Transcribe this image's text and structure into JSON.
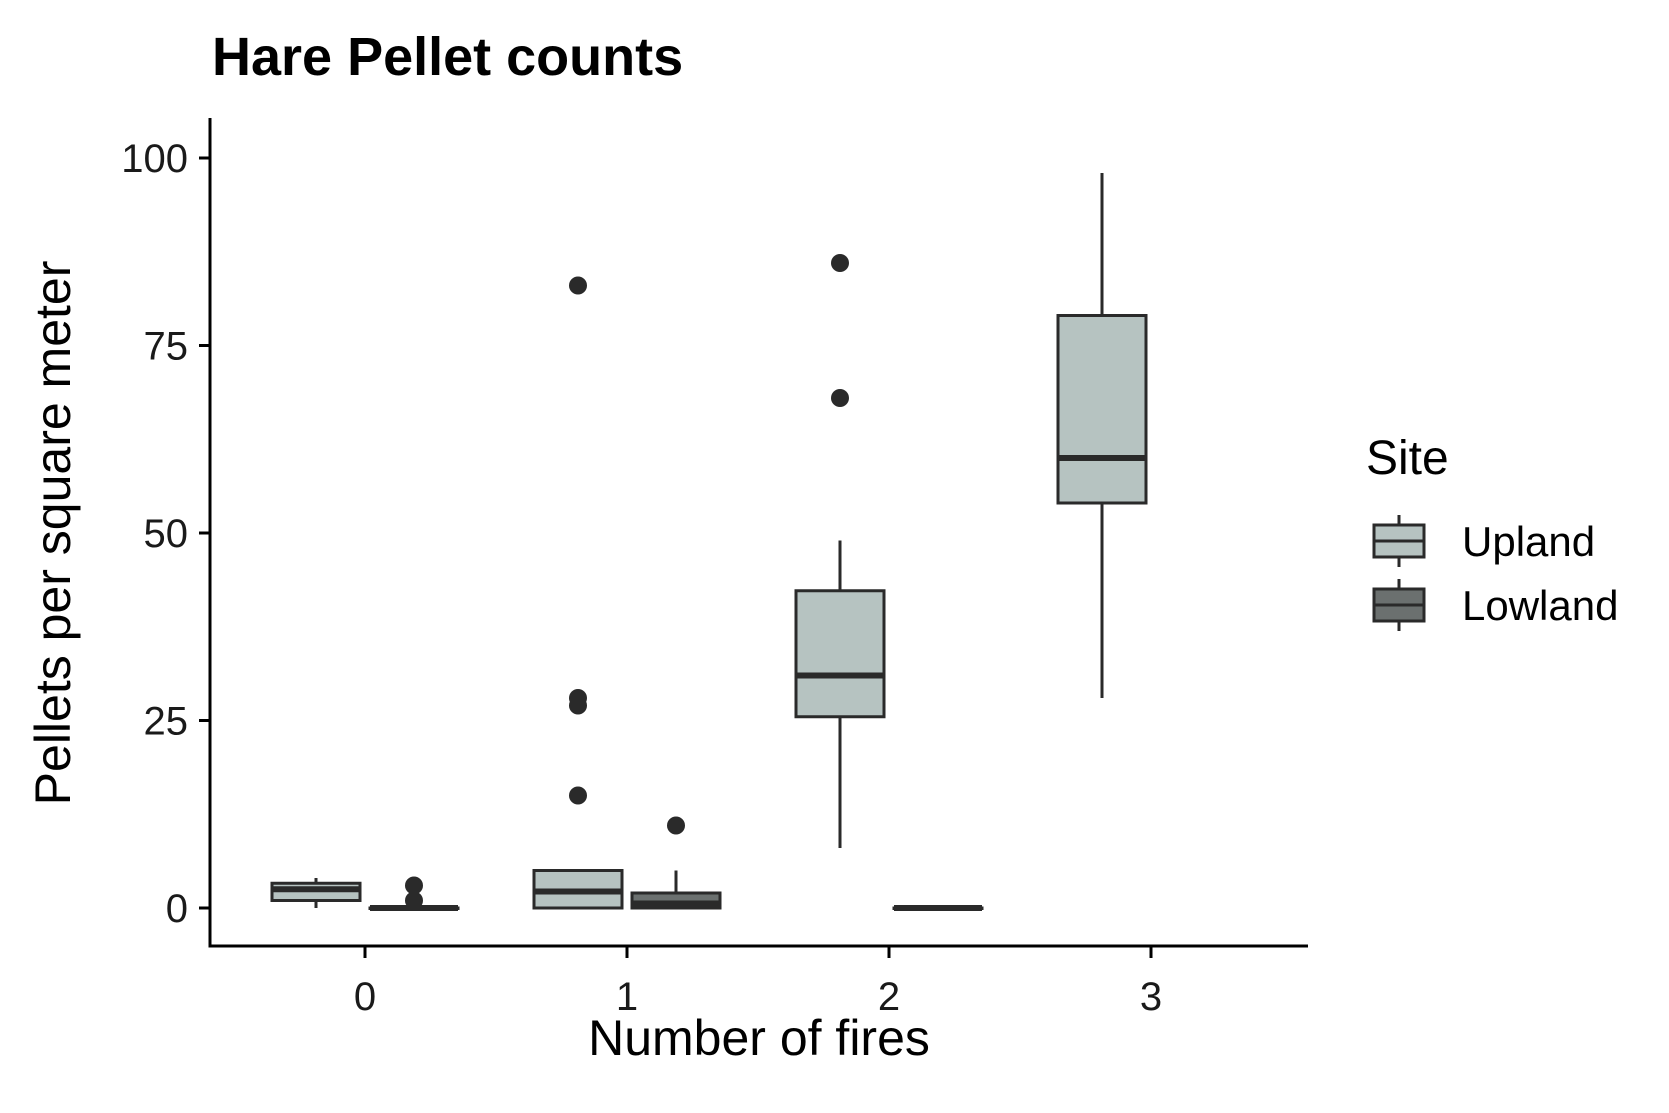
{
  "chart_data": {
    "type": "boxplot",
    "title": "Hare Pellet counts",
    "xlabel": "Number of fires",
    "ylabel": "Pellets per square meter",
    "categories": [
      "0",
      "1",
      "2",
      "3"
    ],
    "yticks": [
      "0",
      "25",
      "50",
      "75",
      "100"
    ],
    "ylim": [
      -5,
      105
    ],
    "grid": false,
    "legend": {
      "title": "Site",
      "position": "right",
      "entries": [
        "Upland",
        "Lowland"
      ]
    },
    "series": [
      {
        "name": "Upland",
        "color": "#b6c3c1",
        "boxes": [
          {
            "category": "0",
            "whisker_low": 0,
            "q1": 1,
            "median": 2.5,
            "q3": 3.3,
            "whisker_high": 4,
            "outliers": []
          },
          {
            "category": "1",
            "whisker_low": 0,
            "q1": 0,
            "median": 2.2,
            "q3": 5,
            "whisker_high": 5,
            "outliers": [
              15,
              27,
              28,
              83
            ]
          },
          {
            "category": "2",
            "whisker_low": 8,
            "q1": 25.5,
            "median": 31,
            "q3": 42.3,
            "whisker_high": 49,
            "outliers": [
              68,
              86
            ]
          },
          {
            "category": "3",
            "whisker_low": 28,
            "q1": 54,
            "median": 60,
            "q3": 79,
            "whisker_high": 98,
            "outliers": []
          }
        ]
      },
      {
        "name": "Lowland",
        "color": "#6b706f",
        "boxes": [
          {
            "category": "0",
            "whisker_low": 0,
            "q1": 0,
            "median": 0,
            "q3": 0,
            "whisker_high": 0,
            "outliers": [
              1,
              3
            ]
          },
          {
            "category": "1",
            "whisker_low": 0,
            "q1": 0,
            "median": 0.6,
            "q3": 2,
            "whisker_high": 5,
            "outliers": [
              11
            ]
          },
          {
            "category": "2",
            "whisker_low": 0,
            "q1": 0,
            "median": 0,
            "q3": 0,
            "whisker_high": 0,
            "outliers": []
          }
        ]
      }
    ]
  }
}
